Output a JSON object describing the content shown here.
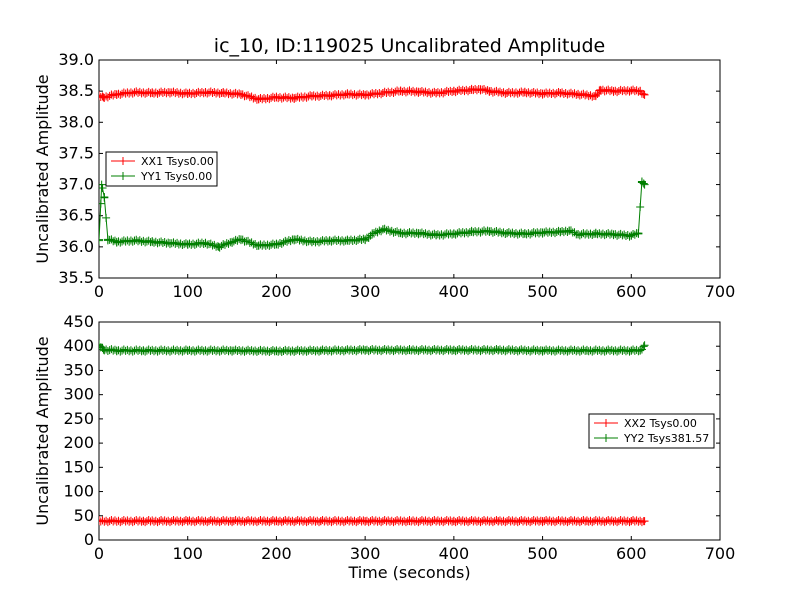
{
  "chart_data": [
    {
      "type": "line",
      "title": "ic_10, ID:119025 Uncalibrated Amplitude",
      "xlabel": "",
      "ylabel": "Uncalibrated Amplitude",
      "xlim": [
        0,
        700
      ],
      "ylim": [
        35.5,
        39.0
      ],
      "xticks": [
        "0",
        "100",
        "200",
        "300",
        "400",
        "500",
        "600",
        "700"
      ],
      "yticks": [
        "35.5",
        "36.0",
        "36.5",
        "37.0",
        "37.5",
        "38.0",
        "38.5",
        "39.0"
      ],
      "grid": false,
      "legend_position": "center-left",
      "marker": "+",
      "series": [
        {
          "name": "XX1 Tsys0.00",
          "color": "#ff0000",
          "x": [
            0,
            5,
            20,
            40,
            60,
            80,
            100,
            120,
            140,
            160,
            180,
            200,
            220,
            240,
            260,
            280,
            300,
            320,
            340,
            360,
            380,
            400,
            420,
            430,
            440,
            460,
            480,
            500,
            520,
            540,
            560,
            565,
            580,
            600,
            610,
            615
          ],
          "y": [
            38.42,
            38.4,
            38.45,
            38.48,
            38.47,
            38.48,
            38.46,
            38.48,
            38.47,
            38.45,
            38.37,
            38.4,
            38.39,
            38.42,
            38.43,
            38.45,
            38.44,
            38.47,
            38.5,
            38.49,
            38.47,
            38.5,
            38.52,
            38.53,
            38.5,
            38.47,
            38.48,
            38.46,
            38.47,
            38.45,
            38.42,
            38.52,
            38.5,
            38.51,
            38.5,
            38.44
          ]
        },
        {
          "name": "YY1 Tsys0.00",
          "color": "#007f00",
          "x": [
            0,
            3,
            6,
            10,
            20,
            40,
            60,
            80,
            100,
            120,
            135,
            150,
            160,
            180,
            200,
            220,
            240,
            260,
            280,
            300,
            310,
            320,
            340,
            360,
            380,
            400,
            420,
            440,
            460,
            480,
            500,
            520,
            530,
            540,
            560,
            580,
            600,
            608,
            612,
            615
          ],
          "y": [
            36.1,
            37.0,
            36.8,
            36.12,
            36.08,
            36.1,
            36.08,
            36.06,
            36.04,
            36.06,
            36.0,
            36.08,
            36.12,
            36.02,
            36.04,
            36.12,
            36.08,
            36.1,
            36.1,
            36.12,
            36.22,
            36.28,
            36.22,
            36.22,
            36.19,
            36.21,
            36.24,
            36.25,
            36.22,
            36.21,
            36.23,
            36.24,
            36.26,
            36.2,
            36.21,
            36.2,
            36.18,
            36.22,
            37.05,
            37.0
          ]
        }
      ]
    },
    {
      "type": "line",
      "title": "",
      "xlabel": "Time (seconds)",
      "ylabel": "Uncalibrated Amplitude",
      "xlim": [
        0,
        700
      ],
      "ylim": [
        0,
        450
      ],
      "xticks": [
        "0",
        "100",
        "200",
        "300",
        "400",
        "500",
        "600",
        "700"
      ],
      "yticks": [
        "0",
        "50",
        "100",
        "150",
        "200",
        "250",
        "300",
        "350",
        "400",
        "450"
      ],
      "grid": false,
      "legend_position": "center-right",
      "marker": "+",
      "series": [
        {
          "name": "XX2 Tsys0.00",
          "color": "#ff0000",
          "x": [
            0,
            50,
            100,
            150,
            200,
            250,
            300,
            350,
            400,
            450,
            500,
            550,
            600,
            615
          ],
          "y": [
            39,
            39,
            39,
            39,
            39,
            39,
            39,
            39,
            39,
            39,
            39,
            39,
            39,
            39
          ]
        },
        {
          "name": "YY2 Tsys381.57",
          "color": "#007f00",
          "x": [
            0,
            5,
            20,
            50,
            100,
            150,
            200,
            250,
            300,
            350,
            400,
            450,
            500,
            550,
            600,
            610,
            615
          ],
          "y": [
            402,
            393,
            391,
            391,
            391,
            391,
            390,
            391,
            392,
            392,
            392,
            392,
            391,
            391,
            391,
            391,
            402
          ]
        }
      ]
    }
  ]
}
